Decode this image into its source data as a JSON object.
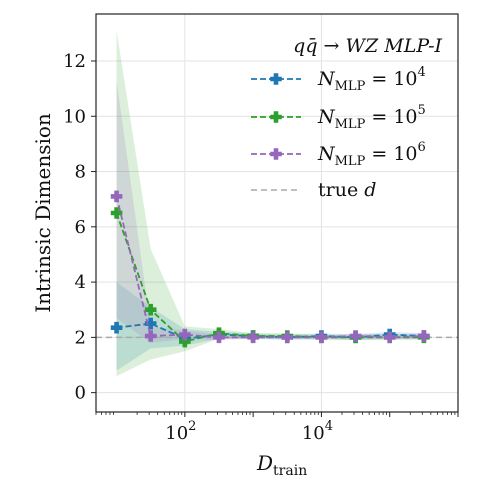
{
  "chart_data": {
    "type": "line",
    "title": "",
    "xlabel": "D",
    "xlabel_sub": "train",
    "ylabel": "Intrinsic Dimension",
    "xscale": "log",
    "xlim": [
      5,
      1000000
    ],
    "ylim": [
      -0.7,
      13.7
    ],
    "grid": true,
    "x_ticks": [
      {
        "value": 100,
        "base": "10",
        "exp": "2"
      },
      {
        "value": 10000,
        "base": "10",
        "exp": "4"
      }
    ],
    "y_ticks": [
      0,
      2,
      4,
      6,
      8,
      10,
      12
    ],
    "legend": {
      "position": "top-right",
      "title": "qq̄ → WZ MLP-I"
    },
    "x": [
      10,
      31.6,
      100,
      316,
      1000,
      3162,
      10000,
      31623,
      100000,
      316228
    ],
    "series": [
      {
        "name": "N_MLP = 10^4",
        "label_sub": "MLP",
        "label_pre": "N",
        "label_mid": " = 10",
        "label_sup": "4",
        "color": "#1f77b4",
        "values": [
          2.35,
          2.5,
          1.95,
          2.1,
          2.05,
          2.0,
          2.05,
          2.0,
          2.1,
          2.05
        ],
        "band_low": [
          0.8,
          1.6,
          1.7,
          1.95,
          1.95,
          1.9,
          1.95,
          1.9,
          1.95,
          1.95
        ],
        "band_high": [
          4.0,
          3.1,
          2.3,
          2.2,
          2.15,
          2.1,
          2.15,
          2.1,
          2.2,
          2.15
        ]
      },
      {
        "name": "N_MLP = 10^5",
        "label_sub": "MLP",
        "label_pre": "N",
        "label_mid": " = 10",
        "label_sup": "5",
        "color": "#2ca02c",
        "values": [
          6.5,
          3.0,
          1.85,
          2.15,
          2.05,
          2.05,
          2.0,
          2.0,
          2.0,
          2.0
        ],
        "band_low": [
          0.6,
          1.2,
          1.5,
          1.95,
          1.95,
          1.95,
          1.9,
          1.9,
          1.9,
          1.9
        ],
        "band_high": [
          13.1,
          5.2,
          2.4,
          2.3,
          2.15,
          2.15,
          2.1,
          2.1,
          2.1,
          2.1
        ]
      },
      {
        "name": "N_MLP = 10^6",
        "label_sub": "MLP",
        "label_pre": "N",
        "label_mid": " = 10",
        "label_sup": "6",
        "color": "#9467bd",
        "values": [
          7.1,
          2.05,
          2.1,
          2.0,
          2.0,
          2.0,
          2.0,
          2.05,
          2.0,
          2.05
        ],
        "band_low": [
          2.7,
          1.8,
          1.95,
          1.9,
          1.95,
          1.95,
          1.95,
          1.95,
          1.95,
          1.95
        ],
        "band_high": [
          11.3,
          2.4,
          2.25,
          2.1,
          2.05,
          2.1,
          2.05,
          2.15,
          2.1,
          2.15
        ]
      }
    ],
    "reference_line": {
      "name": "true d",
      "label_pre": "true ",
      "label_var": "d",
      "value": 2,
      "color": "#aaaaaa"
    }
  }
}
